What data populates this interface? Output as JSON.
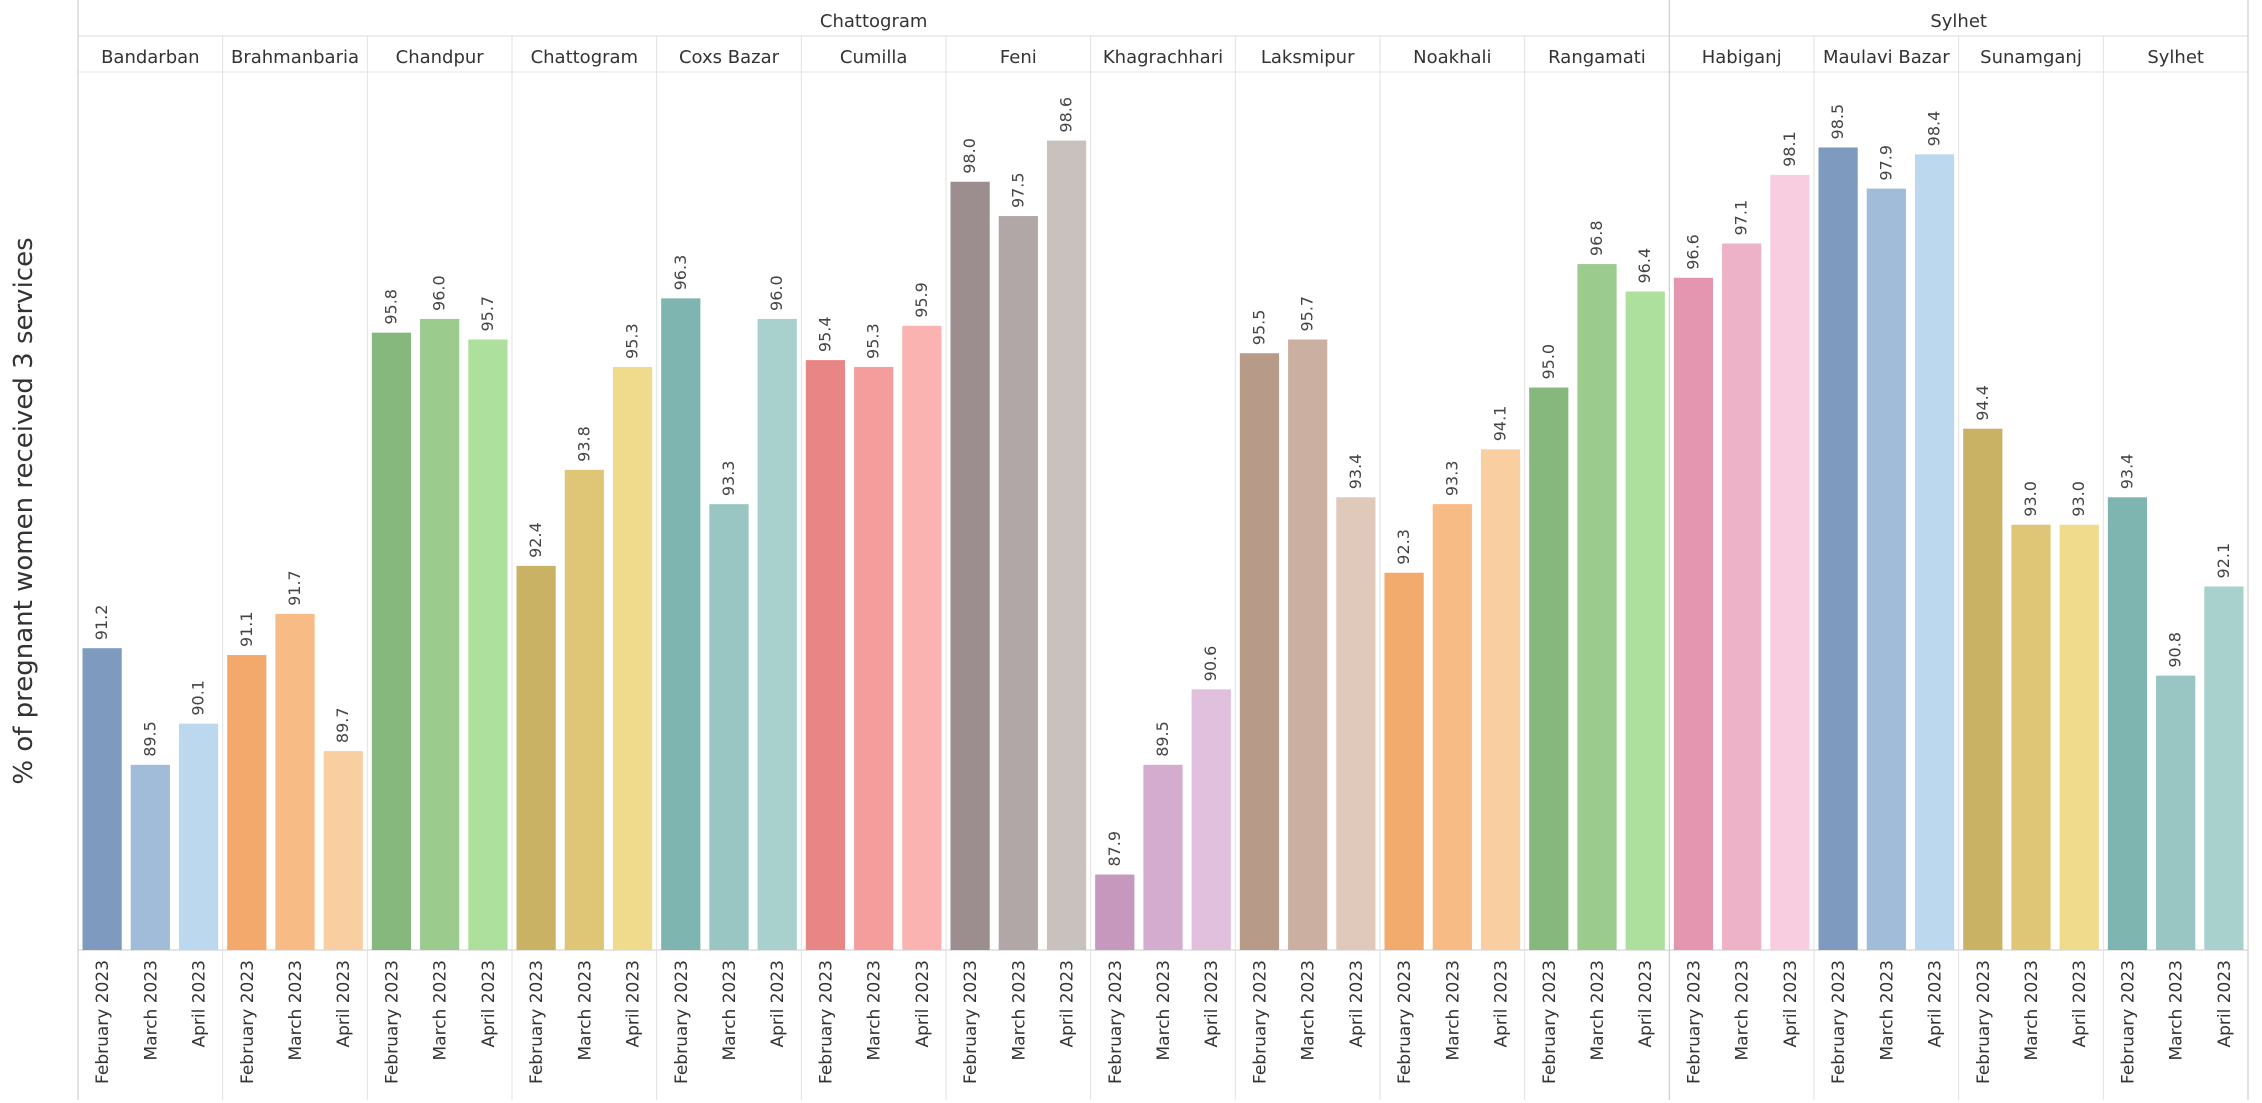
{
  "chart_data": {
    "type": "bar",
    "ylabel": "% of pregnant  women received 3 services",
    "ylim": [
      86.8,
      99.6
    ],
    "months": [
      "February 2023",
      "March 2023",
      "April 2023"
    ],
    "divisions": [
      {
        "name": "Chattogram",
        "districts": [
          {
            "name": "Bandarban",
            "values": [
              91.2,
              89.5,
              90.1
            ],
            "colors": [
              "#7e9bbf",
              "#a0bcd9",
              "#bcd8ee"
            ]
          },
          {
            "name": "Brahmanbaria",
            "values": [
              91.1,
              91.7,
              89.7
            ],
            "colors": [
              "#f3a96c",
              "#f7bb86",
              "#f9cfa2"
            ]
          },
          {
            "name": "Chandpur",
            "values": [
              95.8,
              96.0,
              95.7
            ],
            "colors": [
              "#86b87d",
              "#9ccb8e",
              "#addf9d"
            ]
          },
          {
            "name": "Chattogram",
            "values": [
              92.4,
              93.8,
              95.3
            ],
            "colors": [
              "#c9b264",
              "#dfc676",
              "#f0da8c"
            ]
          },
          {
            "name": "Coxs Bazar",
            "values": [
              96.3,
              93.3,
              96.0
            ],
            "colors": [
              "#7fb5b0",
              "#99c6c2",
              "#a8d0cc"
            ]
          },
          {
            "name": "Cumilla",
            "values": [
              95.4,
              95.3,
              95.9
            ],
            "colors": [
              "#e88585",
              "#f39d9d",
              "#fab3b1"
            ]
          },
          {
            "name": "Feni",
            "values": [
              98.0,
              97.5,
              98.6
            ],
            "colors": [
              "#9c8e8e",
              "#b2a7a7",
              "#c8c1bd"
            ]
          },
          {
            "name": "Khagrachhari",
            "values": [
              87.9,
              89.5,
              90.6
            ],
            "colors": [
              "#c499bd",
              "#d3acce",
              "#e0c0dc"
            ]
          },
          {
            "name": "Laksmipur",
            "values": [
              95.5,
              95.7,
              93.4
            ],
            "colors": [
              "#b89a88",
              "#cbb0a2",
              "#e0c9ba"
            ]
          },
          {
            "name": "Noakhali",
            "values": [
              92.3,
              93.3,
              94.1
            ],
            "colors": [
              "#f2aa6d",
              "#f7bb86",
              "#f9cfa2"
            ]
          },
          {
            "name": "Rangamati",
            "values": [
              95.0,
              96.8,
              96.4
            ],
            "colors": [
              "#86b87d",
              "#9ccb8e",
              "#addf9d"
            ]
          }
        ]
      },
      {
        "name": "Sylhet",
        "districts": [
          {
            "name": "Habiganj",
            "values": [
              96.6,
              97.1,
              98.1
            ],
            "colors": [
              "#e495b0",
              "#eeb2c8",
              "#f9cde0"
            ]
          },
          {
            "name": "Maulavi Bazar",
            "values": [
              98.5,
              97.9,
              98.4
            ],
            "colors": [
              "#7e9bbf",
              "#a0bcd9",
              "#bcd8ee"
            ]
          },
          {
            "name": "Sunamganj",
            "values": [
              94.4,
              93.0,
              93.0
            ],
            "colors": [
              "#c9b264",
              "#dfc676",
              "#f0da8c"
            ]
          },
          {
            "name": "Sylhet",
            "values": [
              93.4,
              90.8,
              92.1
            ],
            "colors": [
              "#7fb5b0",
              "#99c6c2",
              "#a8d0cc"
            ]
          }
        ]
      }
    ]
  }
}
